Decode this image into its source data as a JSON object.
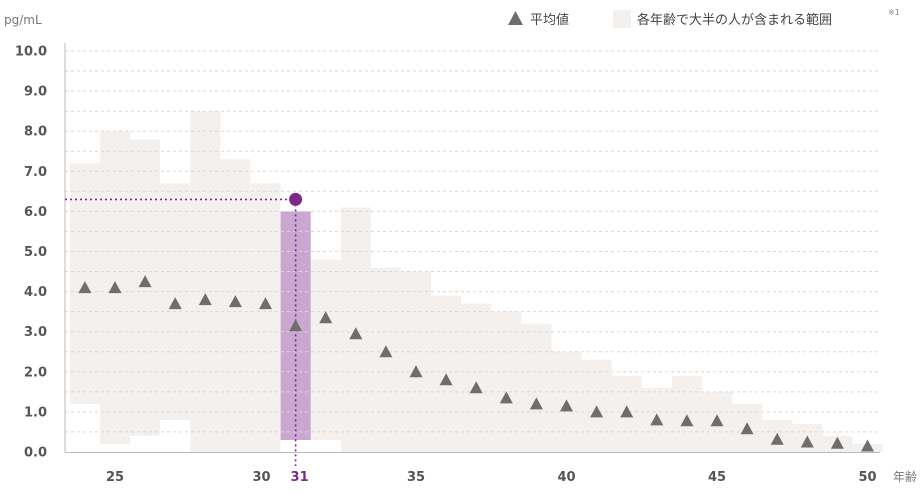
{
  "chart_data": {
    "type": "scatter",
    "y_unit": "pg/mL",
    "x_unit": "年齢",
    "ylim": [
      0,
      10
    ],
    "xlim": [
      23.3,
      50.5
    ],
    "y_ticks": [
      "0.0",
      "1.0",
      "2.0",
      "3.0",
      "4.0",
      "5.0",
      "6.0",
      "7.0",
      "8.0",
      "9.0",
      "10.0"
    ],
    "x_ticks": [
      25,
      30,
      31,
      35,
      40,
      45,
      50
    ],
    "grid": true,
    "legend": {
      "position": "top-right",
      "mean_label": "平均値",
      "range_label": "各年齢で大半の人が含まれる範囲",
      "note": "※1"
    },
    "colors": {
      "range_fill": "#F3F0EE",
      "mean_marker": "#6E6E6E",
      "highlight_bar": "#C9A7D0",
      "highlight_point": "#7B2A8C",
      "grid": "#D8D8D8",
      "axis": "#BBBBBB"
    },
    "highlight": {
      "age": 31,
      "value": 6.3
    },
    "ranges": [
      {
        "age": 24,
        "low": 1.2,
        "high": 7.2
      },
      {
        "age": 25,
        "low": 0.2,
        "high": 8.0
      },
      {
        "age": 26,
        "low": 0.4,
        "high": 7.8
      },
      {
        "age": 27,
        "low": 0.8,
        "high": 6.7
      },
      {
        "age": 28,
        "low": 0.0,
        "high": 8.5
      },
      {
        "age": 29,
        "low": 0.0,
        "high": 7.3
      },
      {
        "age": 30,
        "low": 0.0,
        "high": 6.7
      },
      {
        "age": 31,
        "low": 0.3,
        "high": 6.0
      },
      {
        "age": 32,
        "low": 0.3,
        "high": 4.8
      },
      {
        "age": 33,
        "low": 0.0,
        "high": 6.1
      },
      {
        "age": 34,
        "low": 0.0,
        "high": 4.6
      },
      {
        "age": 35,
        "low": 0.0,
        "high": 4.5
      },
      {
        "age": 36,
        "low": 0.0,
        "high": 3.9
      },
      {
        "age": 37,
        "low": 0.0,
        "high": 3.7
      },
      {
        "age": 38,
        "low": 0.0,
        "high": 3.5
      },
      {
        "age": 39,
        "low": 0.0,
        "high": 3.2
      },
      {
        "age": 40,
        "low": 0.0,
        "high": 2.5
      },
      {
        "age": 41,
        "low": 0.0,
        "high": 2.3
      },
      {
        "age": 42,
        "low": 0.0,
        "high": 1.9
      },
      {
        "age": 43,
        "low": 0.0,
        "high": 1.6
      },
      {
        "age": 44,
        "low": 0.0,
        "high": 1.9
      },
      {
        "age": 45,
        "low": 0.0,
        "high": 1.5
      },
      {
        "age": 46,
        "low": 0.0,
        "high": 1.2
      },
      {
        "age": 47,
        "low": 0.0,
        "high": 0.8
      },
      {
        "age": 48,
        "low": 0.0,
        "high": 0.7
      },
      {
        "age": 49,
        "low": 0.0,
        "high": 0.4
      },
      {
        "age": 50,
        "low": 0.0,
        "high": 0.2
      }
    ],
    "means": [
      {
        "age": 24,
        "value": 4.1
      },
      {
        "age": 25,
        "value": 4.1
      },
      {
        "age": 26,
        "value": 4.25
      },
      {
        "age": 27,
        "value": 3.7
      },
      {
        "age": 28,
        "value": 3.8
      },
      {
        "age": 29,
        "value": 3.75
      },
      {
        "age": 30,
        "value": 3.7
      },
      {
        "age": 31,
        "value": 3.15
      },
      {
        "age": 32,
        "value": 3.35
      },
      {
        "age": 33,
        "value": 2.95
      },
      {
        "age": 34,
        "value": 2.5
      },
      {
        "age": 35,
        "value": 2.0
      },
      {
        "age": 36,
        "value": 1.8
      },
      {
        "age": 37,
        "value": 1.6
      },
      {
        "age": 38,
        "value": 1.35
      },
      {
        "age": 39,
        "value": 1.2
      },
      {
        "age": 40,
        "value": 1.15
      },
      {
        "age": 41,
        "value": 1.0
      },
      {
        "age": 42,
        "value": 1.0
      },
      {
        "age": 43,
        "value": 0.8
      },
      {
        "age": 44,
        "value": 0.78
      },
      {
        "age": 45,
        "value": 0.78
      },
      {
        "age": 46,
        "value": 0.58
      },
      {
        "age": 47,
        "value": 0.32
      },
      {
        "age": 48,
        "value": 0.25
      },
      {
        "age": 49,
        "value": 0.22
      },
      {
        "age": 50,
        "value": 0.15
      }
    ]
  }
}
